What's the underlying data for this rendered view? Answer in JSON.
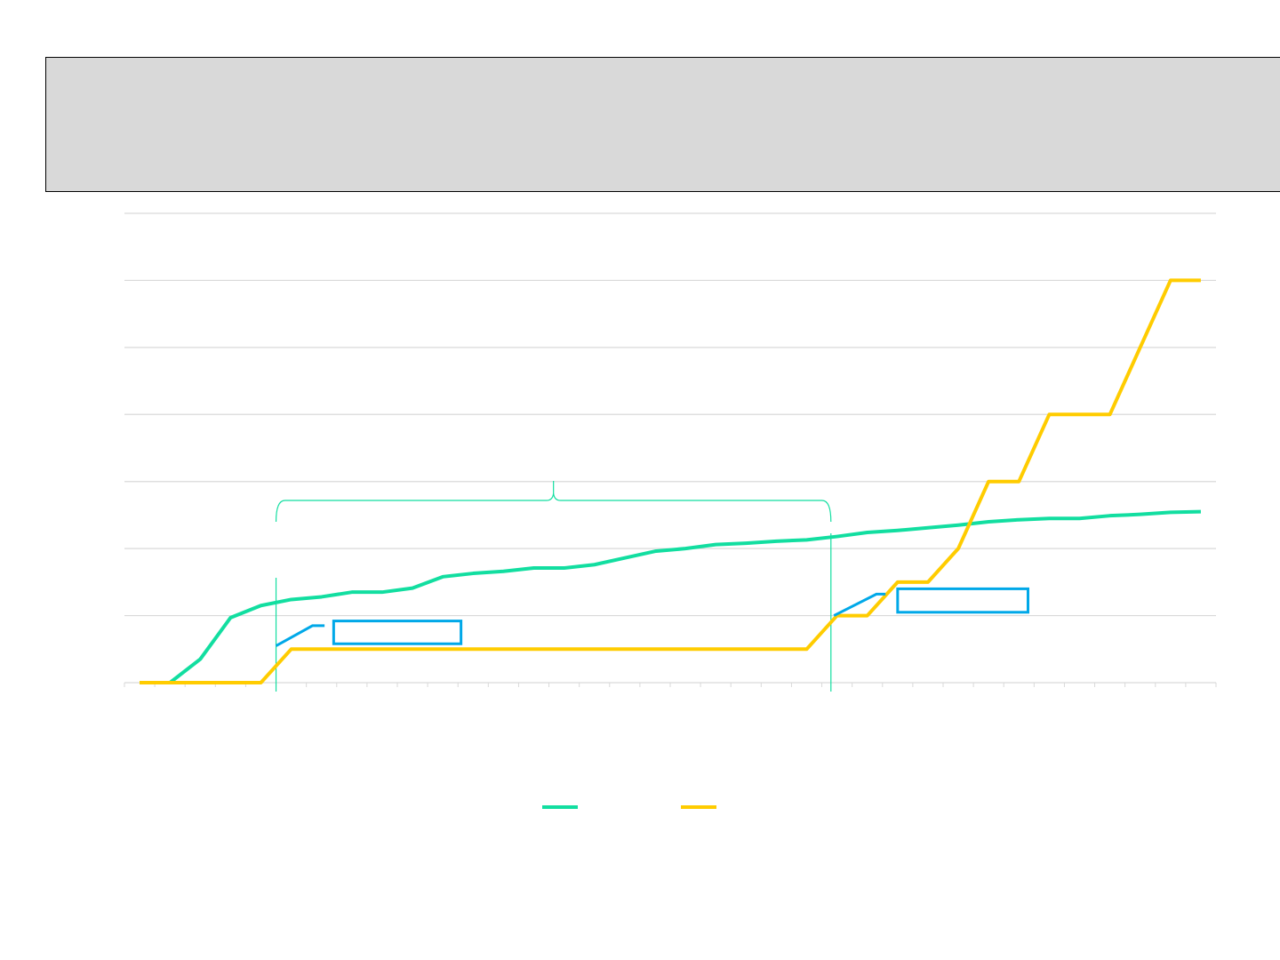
{
  "colors": {
    "background": "#ffffff",
    "title_box": "#d9d9d9",
    "series_1": "#12dea0",
    "series_2": "#ffcc00",
    "callout": "#00a8e8",
    "gridline": "#d9d9d9",
    "bracket": "#12dea0"
  },
  "chart_data": {
    "type": "line",
    "title": "",
    "xlabel": "",
    "ylabel": "",
    "x": [
      1,
      2,
      3,
      4,
      5,
      6,
      7,
      8,
      9,
      10,
      11,
      12,
      13,
      14,
      15,
      16,
      17,
      18,
      19,
      20,
      21,
      22,
      23,
      24,
      25,
      26,
      27,
      28,
      29,
      30,
      31,
      32,
      33,
      34,
      35,
      36
    ],
    "xlim": [
      0.5,
      36.5
    ],
    "ylim": [
      0,
      7
    ],
    "y_gridlines": [
      1,
      2,
      3,
      4,
      5,
      6,
      7
    ],
    "grid": true,
    "legend_position": "bottom-center",
    "series": [
      {
        "color": "#12dea0",
        "values": [
          0,
          0,
          0.35,
          0.97,
          1.15,
          1.24,
          1.28,
          1.35,
          1.35,
          1.41,
          1.58,
          1.63,
          1.66,
          1.71,
          1.71,
          1.76,
          1.86,
          1.96,
          2.0,
          2.06,
          2.08,
          2.11,
          2.13,
          2.18,
          2.24,
          2.27,
          2.31,
          2.35,
          2.4,
          2.43,
          2.45,
          2.45,
          2.49,
          2.51,
          2.54,
          2.55
        ]
      },
      {
        "color": "#ffcc00",
        "values": [
          0,
          0,
          0,
          0,
          0,
          0.5,
          0.5,
          0.5,
          0.5,
          0.5,
          0.5,
          0.5,
          0.5,
          0.5,
          0.5,
          0.5,
          0.5,
          0.5,
          0.5,
          0.5,
          0.5,
          0.5,
          0.5,
          1.0,
          1.0,
          1.5,
          1.5,
          2.0,
          3.0,
          3.0,
          4.0,
          4.0,
          4.0,
          5.0,
          6.0,
          6.0
        ]
      }
    ],
    "vertical_markers": [
      5.5,
      23.8
    ],
    "bracket": {
      "from": 5.5,
      "to": 23.8,
      "y": 2.85
    },
    "callouts": [
      {
        "anchor": [
          5.5,
          0.55
        ],
        "bend": [
          6.7,
          0.85
        ],
        "end": [
          7.1,
          0.85
        ],
        "box_x": [
          7.4,
          11.6
        ],
        "box_y": [
          0.58,
          0.92
        ]
      },
      {
        "anchor": [
          23.9,
          1.0
        ],
        "bend": [
          25.3,
          1.32
        ],
        "end": [
          25.6,
          1.32
        ],
        "box_x": [
          26.0,
          30.3
        ],
        "box_y": [
          1.05,
          1.4
        ]
      }
    ]
  }
}
